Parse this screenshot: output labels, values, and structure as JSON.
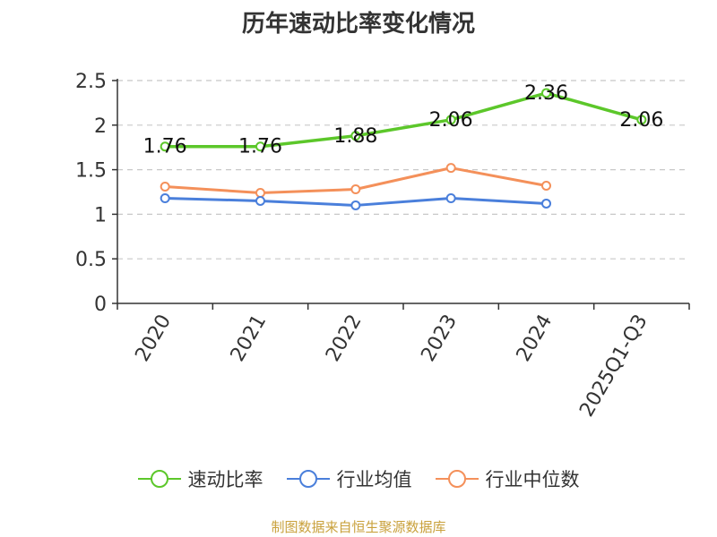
{
  "chart_data": {
    "type": "line",
    "title": "历年速动比率变化情况",
    "categories": [
      "2020",
      "2021",
      "2022",
      "2023",
      "2024",
      "2025Q1-Q3"
    ],
    "ylim": [
      0,
      2.5
    ],
    "yticks": [
      "0",
      "0.5",
      "1",
      "1.5",
      "2",
      "2.5"
    ],
    "grid": true,
    "legend_position": "bottom",
    "series": [
      {
        "name": "速动比率",
        "color": "#5cc72a",
        "values": [
          1.76,
          1.76,
          1.88,
          2.06,
          2.36,
          2.06
        ],
        "labels": [
          "1.76",
          "1.76",
          "1.88",
          "2.06",
          "2.36",
          "2.06"
        ]
      },
      {
        "name": "行业均值",
        "color": "#4a7fdb",
        "values": [
          1.18,
          1.15,
          1.1,
          1.18,
          1.12,
          null
        ]
      },
      {
        "name": "行业中位数",
        "color": "#f4905a",
        "values": [
          1.31,
          1.24,
          1.28,
          1.52,
          1.32,
          null
        ]
      }
    ]
  },
  "footer": {
    "source": "制图数据来自恒生聚源数据库"
  }
}
